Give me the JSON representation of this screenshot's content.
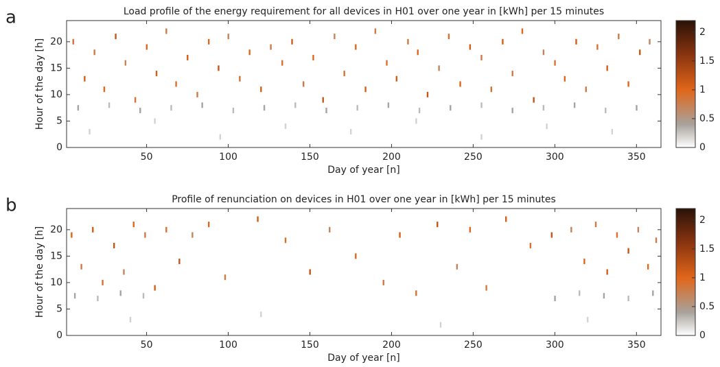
{
  "chart_data": [
    {
      "type": "heatmap",
      "panel_label": "a",
      "title": "Load profile of the energy requirement for all devices in H01 over one year in [kWh] per 15 minutes",
      "xlabel": "Day of year [n]",
      "ylabel": "Hour of the day [h]",
      "xlim": [
        1,
        365
      ],
      "xticks": [
        50,
        100,
        150,
        200,
        250,
        300,
        350
      ],
      "ylim": [
        0,
        24
      ],
      "yticks": [
        0,
        5,
        10,
        15,
        20
      ],
      "clim": [
        0,
        2.2
      ],
      "cticks": [
        0,
        0.5,
        1,
        1.5,
        2
      ],
      "colormap": [
        {
          "value": 0,
          "color": "#ffffff"
        },
        {
          "value": 0.4,
          "color": "#a8a29c"
        },
        {
          "value": 1,
          "color": "#e0661a"
        },
        {
          "value": 1.6,
          "color": "#8a3510"
        },
        {
          "value": 2.2,
          "color": "#2a1208"
        }
      ],
      "x": [
        5,
        12,
        18,
        24,
        31,
        37,
        43,
        50,
        56,
        62,
        68,
        75,
        81,
        88,
        94,
        100,
        107,
        113,
        120,
        126,
        133,
        139,
        146,
        152,
        158,
        165,
        171,
        178,
        184,
        190,
        197,
        203,
        210,
        216,
        222,
        229,
        235,
        242,
        248,
        255,
        261,
        268,
        274,
        280,
        287,
        293,
        300,
        306,
        313,
        319,
        326,
        332,
        339,
        345,
        352,
        358,
        8,
        27,
        46,
        65,
        84,
        103,
        122,
        141,
        160,
        179,
        198,
        217,
        236,
        255,
        274,
        293,
        312,
        331,
        350,
        15,
        55,
        95,
        135,
        175,
        215,
        255,
        295,
        335
      ],
      "y": [
        20,
        13,
        18,
        11,
        21,
        16,
        9,
        19,
        14,
        22,
        12,
        17,
        10,
        20,
        15,
        21,
        13,
        18,
        11,
        19,
        16,
        20,
        12,
        17,
        9,
        21,
        14,
        19,
        11,
        22,
        16,
        13,
        20,
        18,
        10,
        15,
        21,
        12,
        19,
        17,
        11,
        20,
        14,
        22,
        9,
        18,
        16,
        13,
        20,
        11,
        19,
        15,
        21,
        12,
        18,
        20,
        7.5,
        8,
        7,
        7.5,
        8,
        7,
        7.5,
        8,
        7,
        7.5,
        8,
        7,
        7.5,
        8,
        7,
        7.5,
        8,
        7,
        7.5,
        3,
        5,
        2,
        4,
        3,
        5,
        2,
        4,
        3
      ],
      "values": [
        0.9,
        1.1,
        0.8,
        1.0,
        1.2,
        0.7,
        0.9,
        1.0,
        1.1,
        0.8,
        0.9,
        1.1,
        0.8,
        1.0,
        1.2,
        0.7,
        0.9,
        1.0,
        1.1,
        0.8,
        0.9,
        1.1,
        0.8,
        1.0,
        1.2,
        0.7,
        0.9,
        1.0,
        1.1,
        0.8,
        0.9,
        1.1,
        0.8,
        1.0,
        1.2,
        0.7,
        0.9,
        1.0,
        1.1,
        0.8,
        0.9,
        1.1,
        0.8,
        1.0,
        1.2,
        0.7,
        0.9,
        1.0,
        1.1,
        0.8,
        0.9,
        1.1,
        0.8,
        1.0,
        1.2,
        0.7,
        0.4,
        0.3,
        0.4,
        0.3,
        0.4,
        0.3,
        0.4,
        0.3,
        0.4,
        0.3,
        0.4,
        0.3,
        0.4,
        0.3,
        0.4,
        0.3,
        0.4,
        0.3,
        0.4,
        0.2,
        0.2,
        0.2,
        0.2,
        0.2,
        0.2,
        0.2,
        0.2,
        0.2
      ]
    },
    {
      "type": "heatmap",
      "panel_label": "b",
      "title": "Profile of renunciation on devices in H01 over one year in [kWh] per 15 minutes",
      "xlabel": "Day of year [n]",
      "ylabel": "Hour of the day [h]",
      "xlim": [
        1,
        365
      ],
      "xticks": [
        50,
        100,
        150,
        200,
        250,
        300,
        350
      ],
      "ylim": [
        0,
        24
      ],
      "yticks": [
        0,
        5,
        10,
        15,
        20
      ],
      "clim": [
        0,
        2.2
      ],
      "cticks": [
        0,
        0.5,
        1,
        1.5,
        2
      ],
      "colormap": [
        {
          "value": 0,
          "color": "#ffffff"
        },
        {
          "value": 0.4,
          "color": "#a8a29c"
        },
        {
          "value": 1,
          "color": "#e0661a"
        },
        {
          "value": 1.6,
          "color": "#8a3510"
        },
        {
          "value": 2.2,
          "color": "#2a1208"
        }
      ],
      "x": [
        4,
        10,
        17,
        23,
        30,
        36,
        42,
        49,
        55,
        62,
        70,
        78,
        88,
        98,
        118,
        135,
        150,
        162,
        178,
        195,
        205,
        215,
        228,
        240,
        248,
        258,
        270,
        285,
        298,
        310,
        318,
        325,
        332,
        338,
        345,
        351,
        357,
        362,
        6,
        20,
        34,
        48,
        300,
        315,
        330,
        345,
        360,
        40,
        120,
        230,
        320
      ],
      "y": [
        19,
        13,
        20,
        10,
        17,
        12,
        21,
        19,
        9,
        20,
        14,
        19,
        21,
        11,
        22,
        18,
        12,
        20,
        15,
        10,
        19,
        8,
        21,
        13,
        20,
        9,
        22,
        17,
        19,
        20,
        14,
        21,
        12,
        19,
        16,
        20,
        13,
        18,
        7.5,
        7,
        8,
        7.5,
        7,
        8,
        7.5,
        7,
        8,
        3,
        4,
        2,
        3
      ],
      "values": [
        1.0,
        0.8,
        1.1,
        0.9,
        1.2,
        0.7,
        1.0,
        0.8,
        1.1,
        0.9,
        1.2,
        0.7,
        1.0,
        0.8,
        1.1,
        0.9,
        1.2,
        0.7,
        1.0,
        0.8,
        1.1,
        0.9,
        1.2,
        0.7,
        1.0,
        0.8,
        1.1,
        0.9,
        1.2,
        0.7,
        1.0,
        0.8,
        1.1,
        0.9,
        1.2,
        0.7,
        1.0,
        0.8,
        0.4,
        0.3,
        0.4,
        0.3,
        0.4,
        0.3,
        0.4,
        0.3,
        0.4,
        0.2,
        0.2,
        0.2,
        0.2
      ]
    }
  ]
}
